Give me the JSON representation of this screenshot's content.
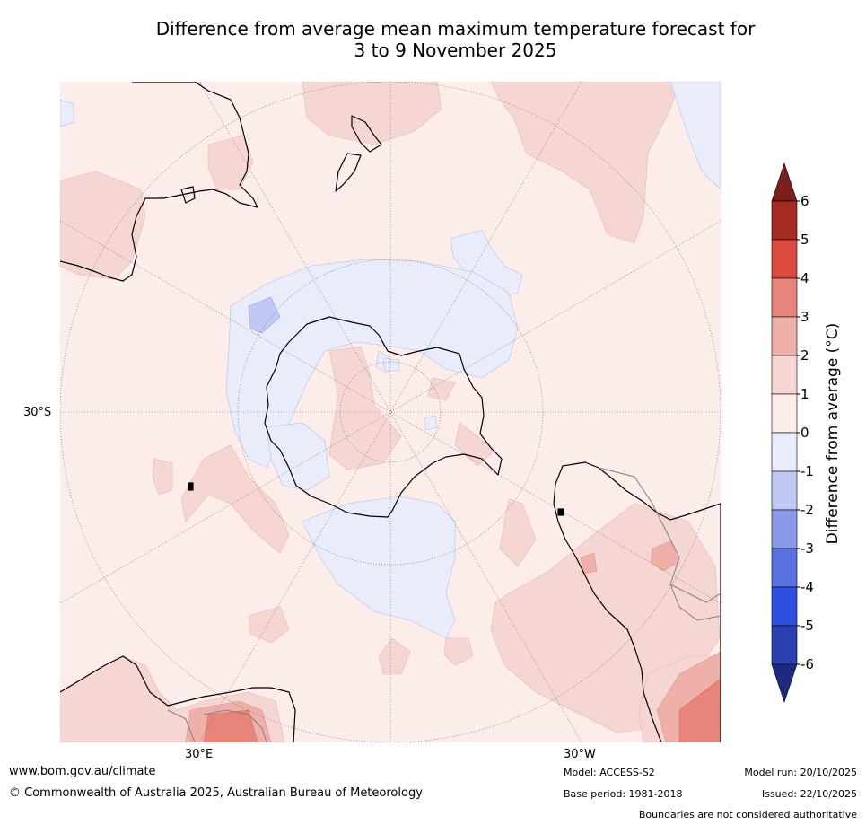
{
  "title": {
    "line1": "Difference from average mean maximum temperature forecast for",
    "line2": "3 to 9 November 2025"
  },
  "map": {
    "labels": {
      "lat_30s": "30°S",
      "lon_30e": "30°E",
      "lon_30w": "30°W"
    },
    "colors": {
      "ocean_neutral": "#fcecea",
      "land_outline": "#000000",
      "border_outline": "#808080",
      "graticule": "#666666"
    }
  },
  "colorbar": {
    "title": "Difference from average (°C)",
    "ticks": [
      "6",
      "5",
      "4",
      "3",
      "2",
      "1",
      "0",
      "-1",
      "-2",
      "-3",
      "-4",
      "-5",
      "-6"
    ],
    "bins": [
      {
        "min": 5,
        "max": 6,
        "color": "#a52a22"
      },
      {
        "min": 4,
        "max": 5,
        "color": "#db4a3f"
      },
      {
        "min": 3,
        "max": 4,
        "color": "#e8857b"
      },
      {
        "min": 2,
        "max": 3,
        "color": "#efb0a9"
      },
      {
        "min": 1,
        "max": 2,
        "color": "#f5d6d3"
      },
      {
        "min": 0,
        "max": 1,
        "color": "#fcecea"
      },
      {
        "min": -1,
        "max": 0,
        "color": "#e8ecfb"
      },
      {
        "min": -2,
        "max": -1,
        "color": "#c0c8f4"
      },
      {
        "min": -3,
        "max": -2,
        "color": "#8a9ae9"
      },
      {
        "min": -4,
        "max": -3,
        "color": "#5a71e2"
      },
      {
        "min": -5,
        "max": -4,
        "color": "#2e50e0"
      },
      {
        "min": -6,
        "max": -5,
        "color": "#2a3fb0"
      }
    ],
    "over_color": "#7a1f1a",
    "under_color": "#1e2a80"
  },
  "footer": {
    "website": "www.bom.gov.au/climate",
    "copyright": "© Commonwealth of Australia 2025, Australian Bureau of Meteorology",
    "model": "Model: ACCESS-S2",
    "base_period": "Base period: 1981-2018",
    "model_run": "Model run: 20/10/2025",
    "issued": "Issued: 22/10/2025",
    "disclaimer": "Boundaries are not considered authoritative"
  }
}
